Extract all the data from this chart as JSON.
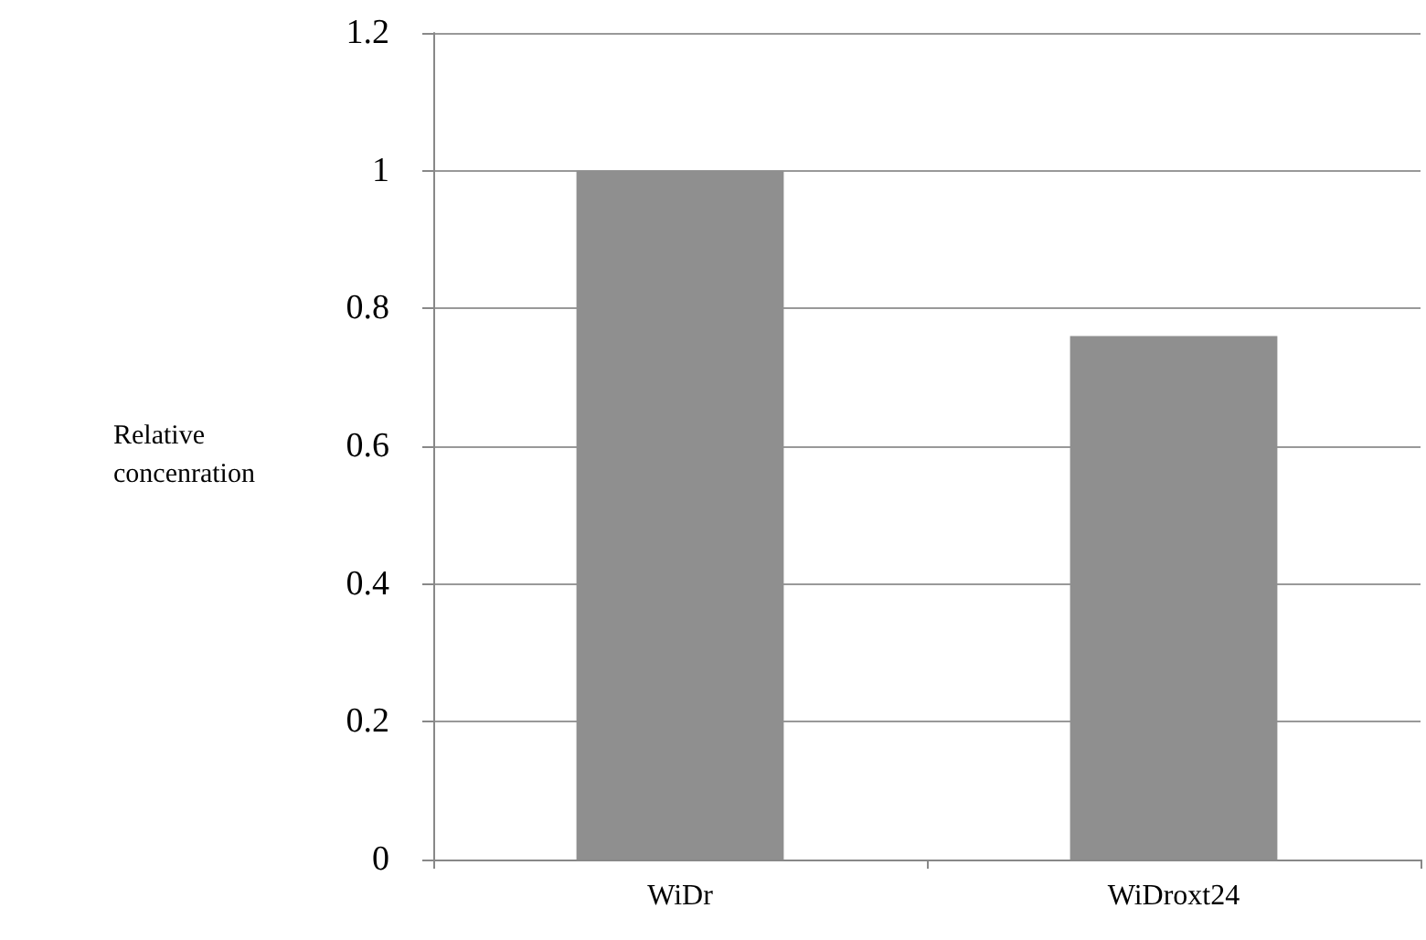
{
  "chart_data": {
    "type": "bar",
    "ylabel": "Relative concenration",
    "categories": [
      "WiDr",
      "WiDroxt24"
    ],
    "values": [
      1,
      0.76
    ],
    "color": "#8f8f8f",
    "ylim": [
      0,
      1.2
    ],
    "yticks": [
      0,
      0.2,
      0.4,
      0.6,
      0.8,
      1,
      1.2
    ],
    "grid": "y"
  }
}
